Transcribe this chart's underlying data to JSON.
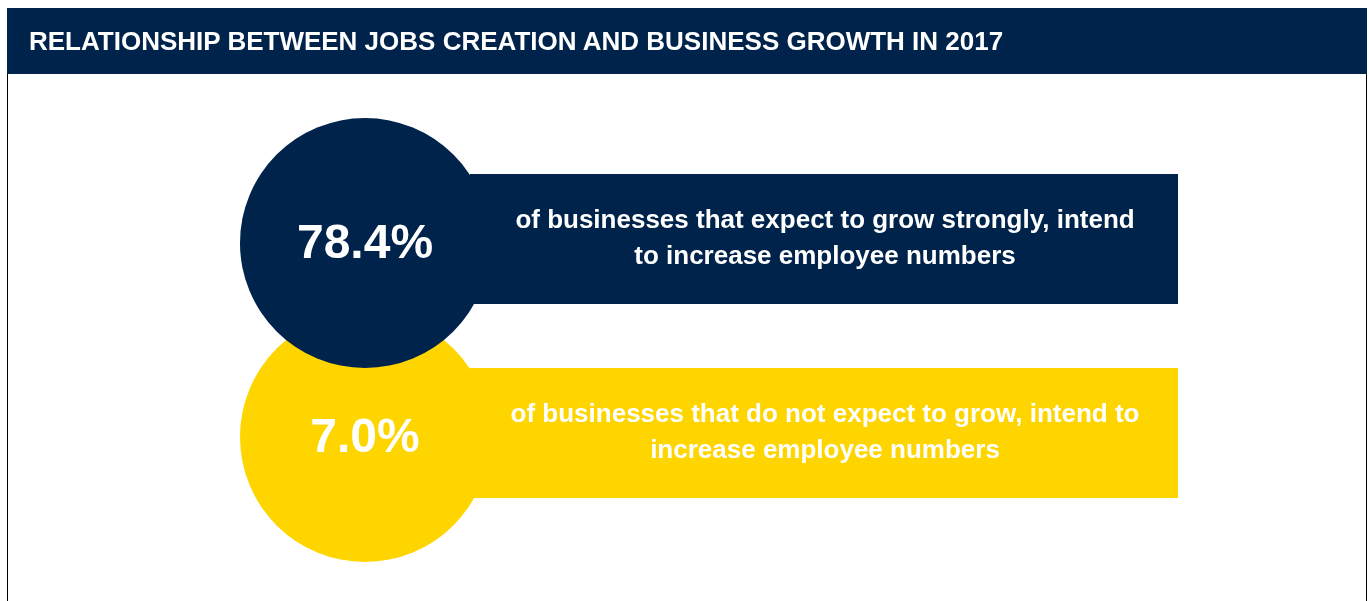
{
  "chart_data": {
    "type": "other",
    "title": "RELATIONSHIP BETWEEN JOBS CREATION AND BUSINESS GROWTH IN 2017",
    "categories": [
      "of businesses that expect to grow strongly, intend to increase employee numbers",
      "of businesses that do not expect to grow, intend to increase employee numbers"
    ],
    "values": [
      78.4,
      7.0
    ],
    "value_labels": [
      "78.4%",
      "7.0%"
    ],
    "colors": [
      "#00234b",
      "#ffd500"
    ]
  }
}
